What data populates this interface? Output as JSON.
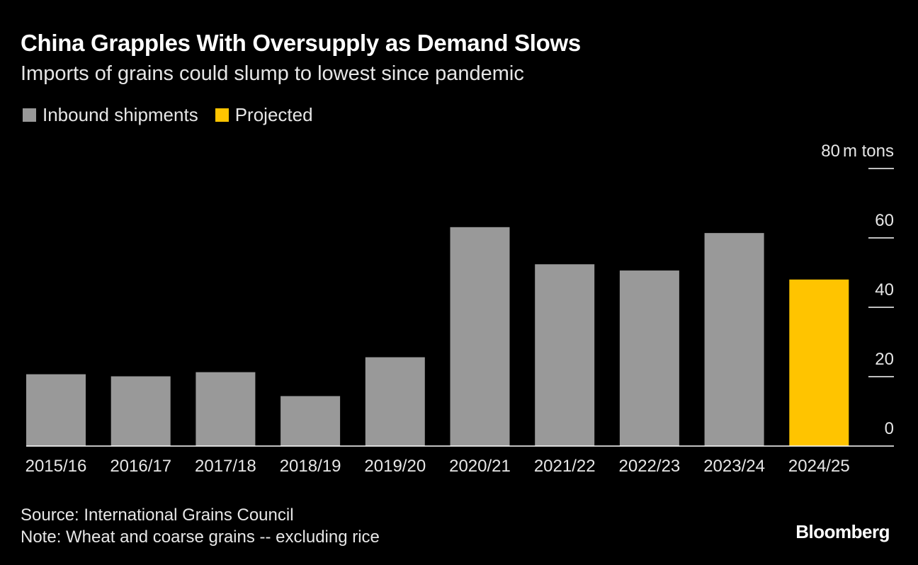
{
  "header": {
    "title": "China Grapples With Oversupply as Demand Slows",
    "subtitle": "Imports of grains could slump to lowest since pandemic"
  },
  "legend": {
    "items": [
      {
        "label": "Inbound shipments",
        "color": "#999999"
      },
      {
        "label": "Projected",
        "color": "#ffc400"
      }
    ]
  },
  "chart_data": {
    "type": "bar",
    "title": "China Grapples With Oversupply as Demand Slows",
    "subtitle": "Imports of grains could slump to lowest since pandemic",
    "categories": [
      "2015/16",
      "2016/17",
      "2017/18",
      "2018/19",
      "2019/20",
      "2020/21",
      "2021/22",
      "2022/23",
      "2023/24",
      "2024/25"
    ],
    "values": [
      20.7,
      20.1,
      21.3,
      14.4,
      25.6,
      63.1,
      52.4,
      50.6,
      61.4,
      48.0
    ],
    "projected": [
      false,
      false,
      false,
      false,
      false,
      false,
      false,
      false,
      false,
      true
    ],
    "series": [
      {
        "name": "Inbound shipments",
        "color": "#999999"
      },
      {
        "name": "Projected",
        "color": "#ffc400"
      }
    ],
    "ylim": [
      0,
      80
    ],
    "yticks": [
      0,
      20,
      40,
      60,
      80
    ],
    "ytick_labels": [
      "0",
      "20",
      "40",
      "60",
      "80"
    ],
    "yunit": "m tons",
    "ylabel": "m tons",
    "xlabel": "",
    "yaxis_position": "right",
    "legend_position": "top-left"
  },
  "footer": {
    "source": "Source: International Grains Council",
    "note": "Note: Wheat and coarse grains -- excluding rice",
    "brand": "Bloomberg"
  }
}
